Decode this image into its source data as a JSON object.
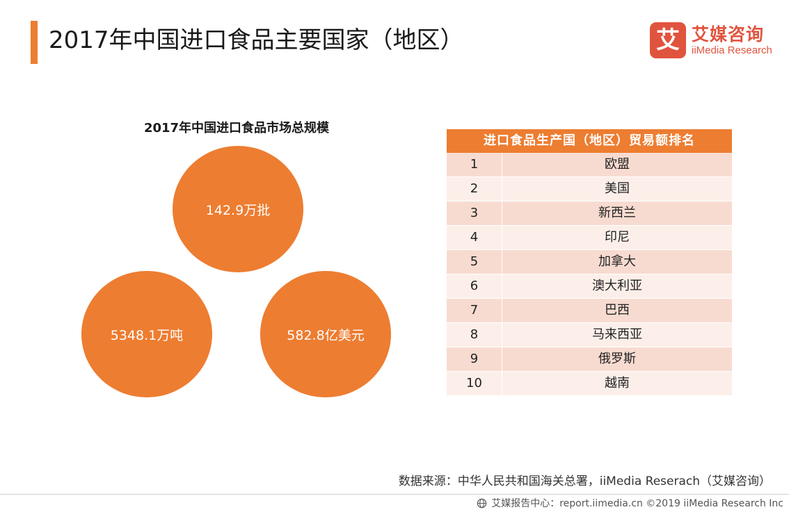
{
  "header": {
    "title": "2017年中国进口食品主要国家（地区）"
  },
  "brand": {
    "mark_glyph": "艾",
    "name": "艾媒咨询",
    "name_en": "iiMedia Research",
    "color": "#e0543e"
  },
  "chart_data": [
    {
      "type": "bubble",
      "title": "2017年中国进口食品市场总规模",
      "items": [
        {
          "label": "142.9万批",
          "value": 142.9,
          "unit": "万批"
        },
        {
          "label": "5348.1万吨",
          "value": 5348.1,
          "unit": "万吨"
        },
        {
          "label": "582.8亿美元",
          "value": 582.8,
          "unit": "亿美元"
        }
      ],
      "color": "#ed7d31"
    },
    {
      "type": "table",
      "title": "进口食品生产国（地区）贸易额排名",
      "rows": [
        {
          "rank": "1",
          "name": "欧盟"
        },
        {
          "rank": "2",
          "name": "美国"
        },
        {
          "rank": "3",
          "name": "新西兰"
        },
        {
          "rank": "4",
          "name": "印尼"
        },
        {
          "rank": "5",
          "name": "加拿大"
        },
        {
          "rank": "6",
          "name": "澳大利亚"
        },
        {
          "rank": "7",
          "name": "巴西"
        },
        {
          "rank": "8",
          "name": "马来西亚"
        },
        {
          "rank": "9",
          "name": "俄罗斯"
        },
        {
          "rank": "10",
          "name": "越南"
        }
      ],
      "header_color": "#ed7d31",
      "row_colors": [
        "#f8dbd0",
        "#fcefe9"
      ]
    }
  ],
  "source": "数据来源：中华人民共和国海关总署，iiMedia Reserach（艾媒咨询）",
  "footer": {
    "icon": "globe-icon",
    "text": "艾媒报告中心：report.iimedia.cn  ©2019  iiMedia Research  Inc"
  }
}
